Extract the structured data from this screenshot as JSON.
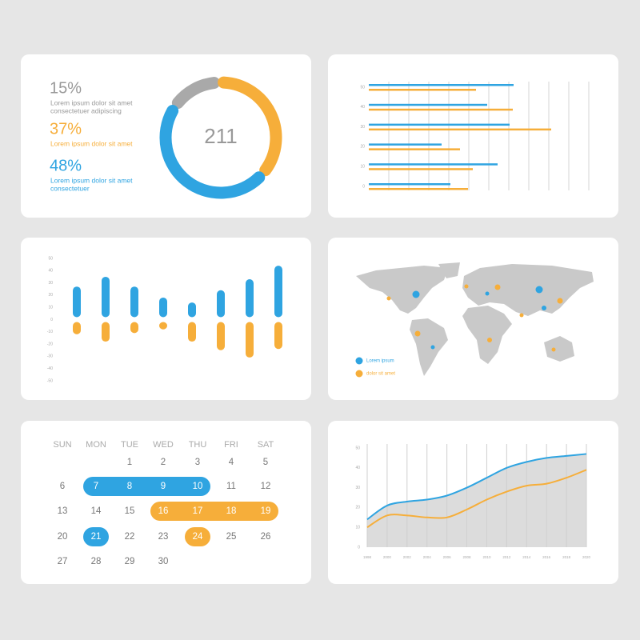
{
  "chart_data": [
    {
      "type": "donut",
      "values": [
        15,
        37,
        48
      ],
      "value_labels": [
        "15%",
        "37%",
        "48%"
      ],
      "descriptions": [
        [
          "Lorem ipsum dolor sit amet",
          "consectetuer adipiscing"
        ],
        [
          "Lorem ipsum dolor sit amet"
        ],
        [
          "Lorem ipsum dolor sit amet",
          "consectetuer"
        ]
      ],
      "colors": [
        "#a9a9a9",
        "#f6ae3a",
        "#2fa4e1"
      ],
      "center_label": 211
    },
    {
      "type": "hbar",
      "categories": [
        "50",
        "40",
        "30",
        "20",
        "10",
        "0"
      ],
      "series": [
        {
          "color": "#2fa4e1",
          "values": [
            7.24,
            5.92,
            7.04,
            3.64,
            6.44,
            4.08
          ]
        },
        {
          "color": "#f6ae3a",
          "values": [
            5.36,
            7.2,
            9.12,
            4.56,
            5.2,
            4.96
          ]
        }
      ],
      "xlim": [
        0,
        11
      ],
      "xticks": [
        1,
        2,
        3,
        4,
        5,
        6,
        7,
        8,
        9,
        10,
        11
      ],
      "grid": true
    },
    {
      "type": "bar",
      "categories": [
        null,
        null,
        null,
        null,
        null,
        null,
        null,
        null
      ],
      "series": [
        {
          "color": "#2fa4e1",
          "values": [
            27,
            35,
            27,
            18,
            14,
            24,
            33,
            44
          ]
        },
        {
          "color": "#f6ae3a",
          "values": [
            -12,
            -18,
            -11,
            -8,
            -18,
            -25,
            -31,
            -24
          ]
        }
      ],
      "ylim": [
        -50,
        50
      ],
      "yticks": [
        50,
        40,
        30,
        20,
        10,
        0,
        -10,
        -20,
        -30,
        -40,
        -50
      ]
    },
    {
      "type": "map",
      "series": [
        {
          "name": "Lorem ipsum",
          "color": "#2fa4e1"
        },
        {
          "name": "dolor sit amet",
          "color": "#f6ae3a"
        }
      ]
    },
    {
      "type": "area",
      "x": [
        1998,
        2000,
        2002,
        2004,
        2006,
        2008,
        2010,
        2012,
        2014,
        2016,
        2018,
        2020
      ],
      "series": [
        {
          "color": "#2fa4e1",
          "values": [
            14,
            21,
            23,
            24,
            26,
            30,
            35,
            40,
            43,
            45,
            46,
            47
          ]
        },
        {
          "color": "#f6ae3a",
          "values": [
            10,
            16,
            16,
            15,
            15,
            19,
            24,
            28,
            31,
            32,
            35,
            39
          ]
        }
      ],
      "xlim": [
        1998,
        2020
      ],
      "xticks": [
        1998,
        2000,
        2002,
        2004,
        2006,
        2008,
        2010,
        2012,
        2014,
        2016,
        2018,
        2020
      ],
      "ylim": [
        0,
        50
      ],
      "yticks": [
        0,
        10,
        20,
        30,
        40,
        50
      ],
      "area_color": "#dcdcdc",
      "grid": true
    }
  ],
  "calendar": {
    "weekdays": [
      "SUN",
      "MON",
      "TUE",
      "WED",
      "THU",
      "FRI",
      "SAT"
    ],
    "weeks": [
      [
        null,
        null,
        1,
        2,
        3,
        4,
        5
      ],
      [
        6,
        7,
        8,
        9,
        10,
        11,
        12
      ],
      [
        13,
        14,
        15,
        16,
        17,
        18,
        19
      ],
      [
        20,
        21,
        22,
        23,
        24,
        25,
        26
      ],
      [
        27,
        28,
        29,
        30,
        null,
        null,
        null
      ]
    ]
  }
}
